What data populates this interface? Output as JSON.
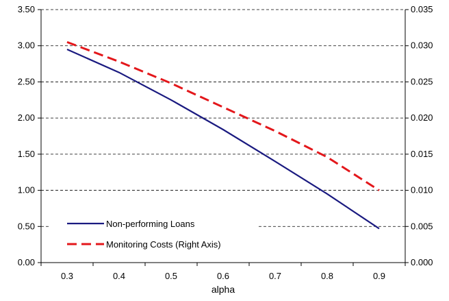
{
  "chart_data": {
    "type": "line",
    "title": "",
    "xlabel": "alpha",
    "ylabel_left": "",
    "ylabel_right": "",
    "x": [
      0.3,
      0.4,
      0.5,
      0.6,
      0.7,
      0.8,
      0.9
    ],
    "x_tick_labels": [
      "0.3",
      "0.4",
      "0.5",
      "0.6",
      "0.7",
      "0.8",
      "0.9"
    ],
    "xlim": [
      0.25,
      0.95
    ],
    "ylim_left": [
      0,
      3.5
    ],
    "ylim_right": [
      0,
      0.035
    ],
    "y_left_tick_labels": [
      "0.00",
      "0.50",
      "1.00",
      "1.50",
      "2.00",
      "2.50",
      "3.00",
      "3.50"
    ],
    "y_right_tick_labels": [
      "0.000",
      "0.005",
      "0.010",
      "0.015",
      "0.020",
      "0.025",
      "0.030",
      "0.035"
    ],
    "grid": "horizontal dashed",
    "legend_position": "bottom-left",
    "series": [
      {
        "name": "Non-performing Loans",
        "axis": "left",
        "color": "#1a1a80",
        "style": "solid",
        "values": [
          2.95,
          2.63,
          2.25,
          1.84,
          1.4,
          0.95,
          0.47
        ]
      },
      {
        "name": "Monitoring Costs (Right Axis)",
        "axis": "right",
        "color": "#e3171b",
        "style": "dashed",
        "values": [
          0.0305,
          0.0278,
          0.0248,
          0.0215,
          0.0182,
          0.0146,
          0.01
        ]
      }
    ]
  }
}
